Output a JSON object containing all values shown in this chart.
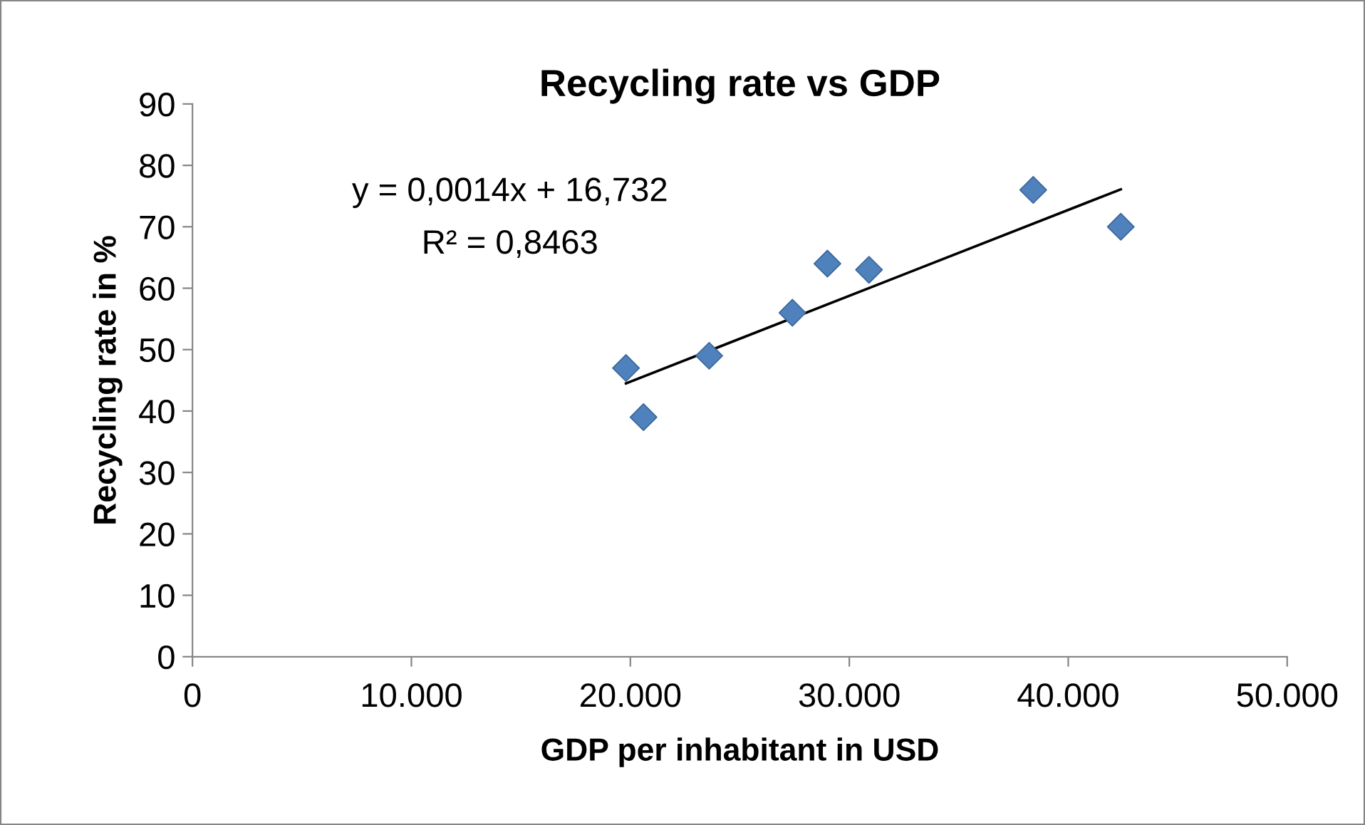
{
  "chart_data": {
    "type": "scatter",
    "title": "Recycling rate vs GDP",
    "xlabel": "GDP per inhabitant in USD",
    "ylabel": "Recycling rate in %",
    "annotations": [
      "y = 0,0014x + 16,732",
      "R² = 0,8463"
    ],
    "series": [
      {
        "color": "#4f81bd",
        "marker": "diamond",
        "x": [
          19800,
          20600,
          23600,
          27400,
          29000,
          30900,
          38400,
          42400
        ],
        "values": [
          47,
          39,
          49,
          56,
          64,
          63,
          76,
          70
        ]
      },
      {
        "type": "line",
        "color": "#000000",
        "marker": "none",
        "x": [
          19800,
          42400
        ],
        "values": [
          44.5,
          76.1
        ]
      }
    ],
    "xlim": [
      0,
      50000
    ],
    "ylim": [
      0,
      90
    ],
    "xticks": [
      0,
      {
        "value": 10000,
        "label": "10.000"
      },
      {
        "value": 20000,
        "label": "20.000"
      },
      {
        "value": 30000,
        "label": "30.000"
      },
      {
        "value": 40000,
        "label": "40.000"
      },
      {
        "value": 50000,
        "label": "50.000"
      }
    ],
    "yticks": [
      0,
      10,
      20,
      30,
      40,
      50,
      60,
      70,
      80,
      90
    ],
    "grid": false,
    "legend": false
  }
}
